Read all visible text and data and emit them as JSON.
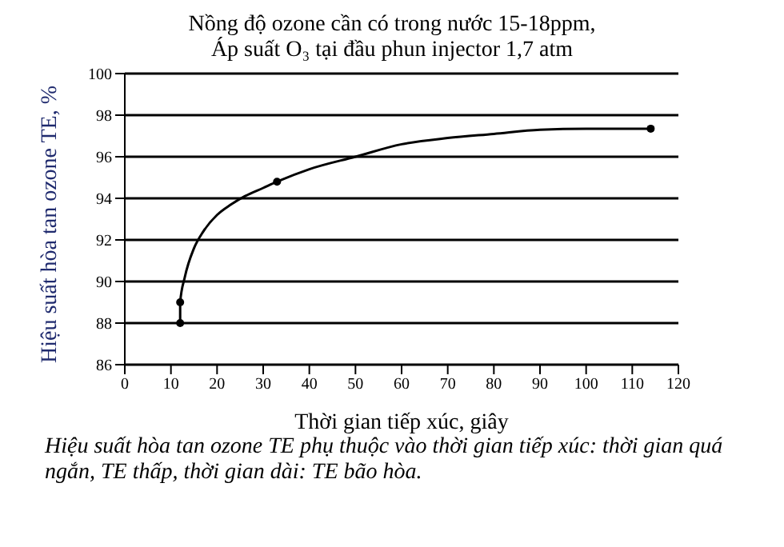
{
  "chart_data": {
    "type": "line",
    "title": "Nồng độ ozone cần có trong nước 15-18ppm,",
    "subtitle": "Áp suất O₃ tại đầu phun injector 1,7 atm",
    "xlabel": "Thời gian tiếp xúc, giây",
    "ylabel": "Hiệu suất hòa tan  ozone TE, %",
    "series": [
      {
        "type": "line",
        "color": "#000000",
        "marker": "none",
        "x": [
          12,
          12,
          13,
          15,
          17,
          20,
          23,
          26,
          30,
          33,
          40,
          50,
          60,
          70,
          80,
          90,
          100,
          114
        ],
        "values": [
          88,
          89,
          90.2,
          91.6,
          92.4,
          93.2,
          93.7,
          94.1,
          94.5,
          94.8,
          95.4,
          96.0,
          96.6,
          96.9,
          97.1,
          97.3,
          97.35,
          97.35
        ]
      },
      {
        "type": "scatter",
        "color": "#000000",
        "marker": "circle",
        "x": [
          12,
          12,
          33,
          114
        ],
        "values": [
          88,
          89,
          94.8,
          97.35
        ]
      }
    ],
    "xlim": [
      0,
      120
    ],
    "xticks": [
      0,
      10,
      20,
      30,
      40,
      50,
      60,
      70,
      80,
      90,
      100,
      110,
      120
    ],
    "ylim": [
      86,
      100
    ],
    "yticks": [
      86,
      88,
      90,
      92,
      94,
      96,
      98,
      100
    ],
    "grid": "y",
    "annotations": [
      "Hiệu suất hòa tan ozone TE phụ thuộc vào thời gian tiếp xúc: thời gian quá ngắn, TE thấp, thời gian dài: TE bão hòa."
    ]
  }
}
